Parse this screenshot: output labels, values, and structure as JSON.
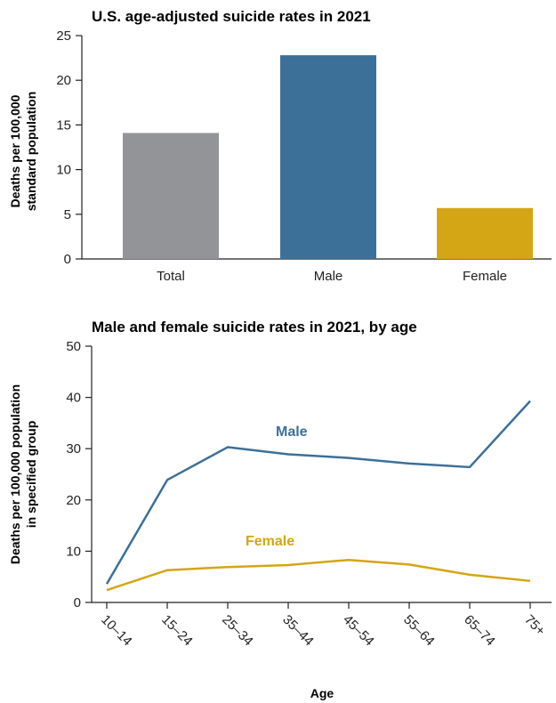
{
  "chart_data": [
    {
      "type": "bar",
      "title": "U.S. age-adjusted suicide rates in 2021",
      "ylabel_lines": [
        "Deaths per 100,000",
        "standard population"
      ],
      "xlabel": "",
      "ylim": [
        0,
        25
      ],
      "yticks": [
        0,
        5,
        10,
        15,
        20,
        25
      ],
      "categories": [
        "Total",
        "Male",
        "Female"
      ],
      "values": [
        14.1,
        22.8,
        5.7
      ],
      "colors": [
        "#929497",
        "#3c7099",
        "#d4a515"
      ],
      "grid": false
    },
    {
      "type": "line",
      "title": "Male and female suicide rates in 2021, by age",
      "ylabel_lines": [
        "Deaths per 100,000 population",
        "in specified group"
      ],
      "xlabel": "Age",
      "ylim": [
        0,
        50
      ],
      "yticks": [
        0,
        10,
        20,
        30,
        40,
        50
      ],
      "categories": [
        "10–14",
        "15–24",
        "25–34",
        "35–44",
        "45–54",
        "55–64",
        "65–74",
        "75+"
      ],
      "series": [
        {
          "name": "Male",
          "color": "#3c7099",
          "values": [
            3.6,
            23.9,
            30.3,
            28.9,
            28.2,
            27.1,
            26.4,
            39.3
          ]
        },
        {
          "name": "Female",
          "color": "#d4a515",
          "values": [
            2.4,
            6.3,
            6.9,
            7.3,
            8.3,
            7.4,
            5.4,
            4.2
          ]
        }
      ],
      "grid": false
    }
  ]
}
